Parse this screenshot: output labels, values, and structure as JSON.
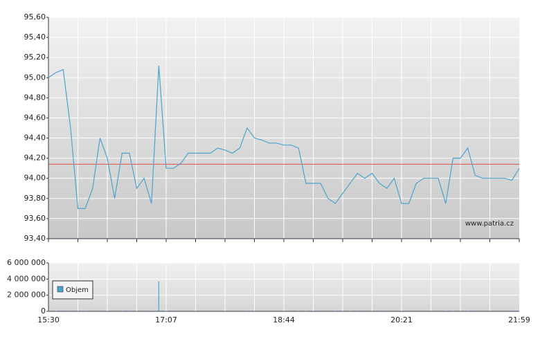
{
  "chart_data": [
    {
      "type": "line",
      "color": "#4aa3cf",
      "reference_line": 94.14,
      "reference_color": "#e05050",
      "values": [
        95.0,
        95.05,
        95.08,
        94.5,
        93.7,
        93.7,
        93.9,
        94.4,
        94.2,
        93.8,
        94.25,
        94.25,
        93.9,
        94.0,
        93.75,
        95.12,
        94.1,
        94.1,
        94.15,
        94.25,
        94.25,
        94.25,
        94.25,
        94.3,
        94.28,
        94.25,
        94.3,
        94.5,
        94.4,
        94.38,
        94.35,
        94.35,
        94.33,
        94.33,
        94.3,
        93.95,
        93.95,
        93.95,
        93.8,
        93.75,
        93.85,
        93.95,
        94.05,
        94.0,
        94.05,
        93.95,
        93.9,
        94.0,
        93.75,
        93.75,
        93.95,
        94.0,
        94.0,
        94.0,
        93.75,
        94.2,
        94.2,
        94.3,
        94.03,
        94.0,
        94.0,
        94.0,
        94.0,
        93.98,
        94.1
      ],
      "ylim": [
        93.4,
        95.6
      ],
      "yticks": [
        {
          "value": 93.4,
          "label": "93,40"
        },
        {
          "value": 93.6,
          "label": "93,60"
        },
        {
          "value": 93.8,
          "label": "93,80"
        },
        {
          "value": 94.0,
          "label": "94,00"
        },
        {
          "value": 94.2,
          "label": "94,20"
        },
        {
          "value": 94.4,
          "label": "94,40"
        },
        {
          "value": 94.6,
          "label": "94,60"
        },
        {
          "value": 94.8,
          "label": "94,80"
        },
        {
          "value": 95.0,
          "label": "95,00"
        },
        {
          "value": 95.2,
          "label": "95,20"
        },
        {
          "value": 95.4,
          "label": "95,40"
        },
        {
          "value": 95.6,
          "label": "95,60"
        }
      ],
      "grid": true,
      "annotation": "www.patria.cz"
    },
    {
      "type": "bar",
      "x": [
        "15:30",
        null,
        null,
        null,
        null,
        null,
        null,
        null,
        null,
        null,
        null,
        null,
        null,
        null,
        null,
        null,
        "17:07",
        null,
        null,
        null,
        null,
        null,
        null,
        null,
        null,
        null,
        null,
        null,
        null,
        null,
        null,
        null,
        "18:44",
        null,
        null,
        null,
        null,
        null,
        null,
        null,
        null,
        null,
        null,
        null,
        null,
        null,
        null,
        null,
        "20:21",
        null,
        null,
        null,
        null,
        null,
        null,
        null,
        null,
        null,
        null,
        null,
        null,
        null,
        null,
        null,
        "21:59"
      ],
      "series": [
        {
          "name": "Objem",
          "color": "#4aa3cf",
          "values": [
            60000,
            40000,
            30000,
            50000,
            60000,
            40000,
            30000,
            30000,
            40000,
            30000,
            40000,
            50000,
            30000,
            40000,
            40000,
            3700000,
            50000,
            30000,
            30000,
            20000,
            20000,
            30000,
            30000,
            20000,
            20000,
            30000,
            30000,
            40000,
            30000,
            20000,
            20000,
            20000,
            20000,
            20000,
            30000,
            40000,
            40000,
            30000,
            30000,
            40000,
            50000,
            40000,
            30000,
            30000,
            30000,
            30000,
            30000,
            30000,
            40000,
            20000,
            30000,
            20000,
            20000,
            20000,
            40000,
            40000,
            30000,
            40000,
            30000,
            20000,
            20000,
            20000,
            20000,
            30000,
            60000
          ]
        }
      ],
      "ylim": [
        0,
        6000000
      ],
      "yticks": [
        0,
        {
          "value": 2000000,
          "label": "2 000 000"
        },
        {
          "value": 4000000,
          "label": "4 000 000"
        },
        {
          "value": 6000000,
          "label": "6 000 000"
        }
      ],
      "grid": true,
      "legend": "upper-left"
    }
  ]
}
